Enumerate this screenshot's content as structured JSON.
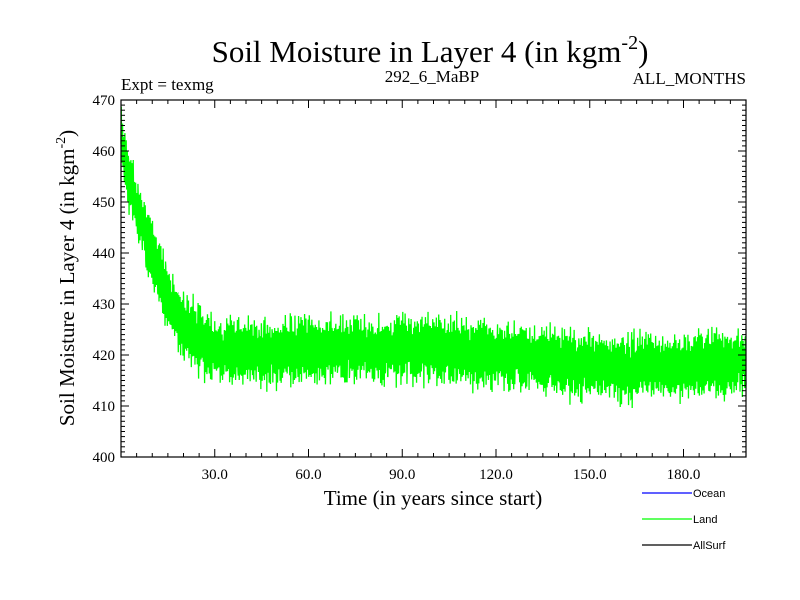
{
  "chart_data": {
    "type": "line",
    "title": "Soil Moisture in Layer 4 (in kgm",
    "title_superscript": "-2",
    "title_close": ")",
    "subtitle_left": "Expt = texmg",
    "subtitle_center": "292_6_MaBP",
    "subtitle_right": "ALL_MONTHS",
    "xlabel": "Time (in years since start)",
    "ylabel": "Soil Moisture in Layer 4 (in kgm",
    "ylabel_superscript": "-2",
    "ylabel_close": ")",
    "xlim": [
      0,
      200
    ],
    "ylim": [
      400,
      470
    ],
    "x_ticks": [
      30,
      60,
      90,
      120,
      150,
      180
    ],
    "x_tick_labels": [
      "30.0",
      "60.0",
      "90.0",
      "120.0",
      "150.0",
      "180.0"
    ],
    "y_ticks": [
      400,
      410,
      420,
      430,
      440,
      450,
      460,
      470
    ],
    "y_tick_labels": [
      "400",
      "410",
      "420",
      "430",
      "440",
      "450",
      "460",
      "470"
    ],
    "legend_position": "bottom-right",
    "colors": {
      "Ocean": "#0000ff",
      "Land": "#00ff00",
      "AllSurf": "#000000",
      "axis": "#000000"
    },
    "series": [
      {
        "name": "Ocean",
        "values": []
      },
      {
        "name": "Land",
        "baseline": {
          "x": [
            0,
            2,
            5,
            8,
            12,
            16,
            20,
            25,
            30,
            40,
            60,
            80,
            100,
            120,
            140,
            160,
            180,
            200
          ],
          "y": [
            462,
            456,
            449,
            443,
            436,
            430,
            426,
            423,
            421,
            420.5,
            421,
            421,
            421,
            420,
            418.5,
            417.5,
            418,
            418.5
          ]
        },
        "amplitude": 6,
        "samples_per_year": 12
      },
      {
        "name": "AllSurf",
        "values": []
      }
    ],
    "legend": [
      "Ocean",
      "Land",
      "AllSurf"
    ]
  }
}
